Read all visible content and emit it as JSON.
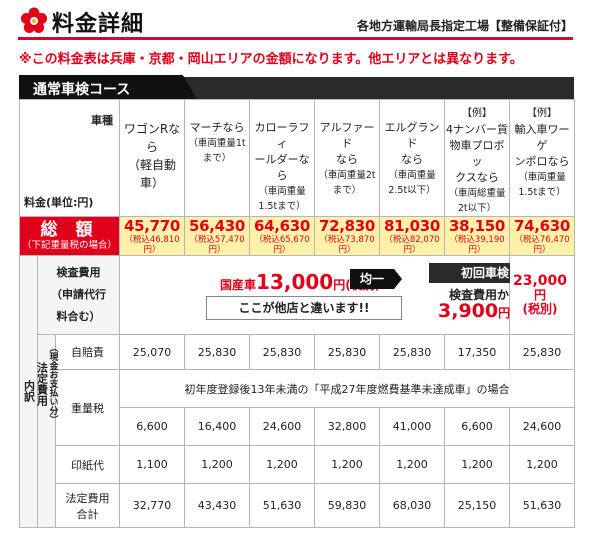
{
  "header": {
    "title": "料金詳細",
    "subtitle": "各地方運輸局長指定工場【整備保証付】",
    "logo_icon": "flower-icon",
    "accent_color": "#e0001b"
  },
  "notice": "※この料金表は兵庫・京都・岡山エリアの金額になります。他エリアとは異なります。",
  "course_tab": "通常車検コース",
  "table": {
    "vehicle_label": "車種",
    "price_label": "料金(単位:円)",
    "vehicles": [
      {
        "lines": [
          "ワゴンRな",
          "ら",
          "（軽自動",
          "車）"
        ],
        "weight": [],
        "example": ""
      },
      {
        "lines": [
          "マーチなら"
        ],
        "weight": [
          "（車両重量1t",
          "まで）"
        ],
        "example": ""
      },
      {
        "lines": [
          "カローラフィ",
          "ールダーなら"
        ],
        "weight": [
          "（車両重量",
          "1.5tまで）"
        ],
        "example": ""
      },
      {
        "lines": [
          "アルファード",
          "なら"
        ],
        "weight": [
          "（車両重量2t",
          "まで）"
        ],
        "example": ""
      },
      {
        "lines": [
          "エルグランド",
          "なら"
        ],
        "weight": [
          "（車両重量",
          "2.5t以下）"
        ],
        "example": ""
      },
      {
        "lines": [
          "4ナンバー貨",
          "物車プロボッ",
          "クスなら"
        ],
        "weight": [
          "（車両総重量",
          "2t以下）"
        ],
        "example": "【例】"
      },
      {
        "lines": [
          "輸入車ワーゲ",
          "ンポロなら"
        ],
        "weight": [
          "（車両重量",
          "1.5tまで）"
        ],
        "example": "【例】"
      }
    ],
    "total": {
      "label": "総 額",
      "sub": "（下記重量税の場合）",
      "prices": [
        {
          "price": "45,770",
          "tax": "（税込46,810円）"
        },
        {
          "price": "56,430",
          "tax": "（税込57,470円）"
        },
        {
          "price": "64,630",
          "tax": "（税込65,670円）"
        },
        {
          "price": "72,830",
          "tax": "（税込73,870円）"
        },
        {
          "price": "81,030",
          "tax": "（税込82,070円）"
        },
        {
          "price": "38,150",
          "tax": "（税込39,190円）"
        },
        {
          "price": "74,630",
          "tax": "（税込76,470円）"
        }
      ]
    },
    "inspection": {
      "label_lines": [
        "検査費用",
        "（申請代行",
        "料合む）"
      ],
      "domestic_prefix": "国産車",
      "domestic_price": "13,000",
      "domestic_unit": "円(税別)",
      "uniform_badge": "均一",
      "difference_text": "ここが他店と違います!!",
      "first_inspection_label": "初回車検",
      "first_from": "検査費用から",
      "first_discount": "3,900",
      "first_discount_unit": "円割引",
      "import_price": "23,000",
      "import_unit_1": "円",
      "import_unit_2": "(税別)"
    },
    "breakdown_label": "内訳",
    "legal_label": "法定費用",
    "legal_sub": "（現金お支払い分）",
    "rows": {
      "jibaiseki": {
        "label": "自賠責",
        "values": [
          "25,070",
          "25,830",
          "25,830",
          "25,830",
          "25,830",
          "17,350",
          "25,830"
        ]
      },
      "note": "初年度登録後13年未満の「平成27年度燃費基準未達成車」の場合",
      "juryo": {
        "label": "重量税",
        "values": [
          "6,600",
          "16,400",
          "24,600",
          "32,800",
          "41,000",
          "6,600",
          "24,600"
        ]
      },
      "inshi": {
        "label": "印紙代",
        "values": [
          "1,100",
          "1,200",
          "1,200",
          "1,200",
          "1,200",
          "1,200",
          "1,200"
        ]
      },
      "total_legal": {
        "label_lines": [
          "法定費用",
          "合計"
        ],
        "values": [
          "32,770",
          "43,430",
          "51,630",
          "59,830",
          "68,030",
          "25,150",
          "51,630"
        ]
      }
    }
  }
}
